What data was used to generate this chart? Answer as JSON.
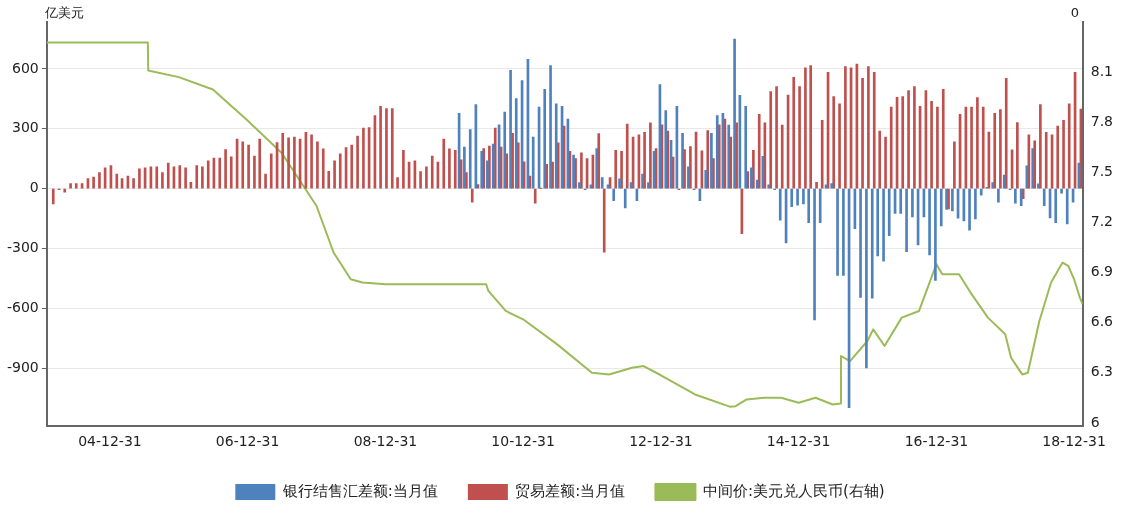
{
  "chart_data": {
    "type": "bar",
    "ylabel": "亿美元",
    "legend": "bottom",
    "grid": "y",
    "marker": "none",
    "x": [
      "2004-02-29",
      "2004-03-31",
      "2004-04-30",
      "2004-05-31",
      "2004-06-30",
      "2004-07-31",
      "2004-08-31",
      "2004-09-30",
      "2004-10-31",
      "2004-11-30",
      "2004-12-31",
      "2005-01-31",
      "2005-02-28",
      "2005-03-31",
      "2005-04-30",
      "2005-05-31",
      "2005-06-30",
      "2005-07-31",
      "2005-08-31",
      "2005-09-30",
      "2005-10-31",
      "2005-11-30",
      "2005-12-31",
      "2006-01-31",
      "2006-02-28",
      "2006-03-31",
      "2006-04-30",
      "2006-05-31",
      "2006-06-30",
      "2006-07-31",
      "2006-08-31",
      "2006-09-30",
      "2006-10-31",
      "2006-11-30",
      "2006-12-31",
      "2007-01-31",
      "2007-02-28",
      "2007-03-31",
      "2007-04-30",
      "2007-05-31",
      "2007-06-30",
      "2007-07-31",
      "2007-08-31",
      "2007-09-30",
      "2007-10-31",
      "2007-11-30",
      "2007-12-31",
      "2008-01-31",
      "2008-02-29",
      "2008-03-31",
      "2008-04-30",
      "2008-05-31",
      "2008-06-30",
      "2008-07-31",
      "2008-08-31",
      "2008-09-30",
      "2008-10-31",
      "2008-11-30",
      "2008-12-31",
      "2009-01-31",
      "2009-02-28",
      "2009-03-31",
      "2009-04-30",
      "2009-05-31",
      "2009-06-30",
      "2009-07-31",
      "2009-08-31",
      "2009-09-30",
      "2009-10-31",
      "2009-11-30",
      "2009-12-31",
      "2010-01-31",
      "2010-02-28",
      "2010-03-31",
      "2010-04-30",
      "2010-05-31",
      "2010-06-30",
      "2010-07-31",
      "2010-08-31",
      "2010-09-30",
      "2010-10-31",
      "2010-11-30",
      "2010-12-31",
      "2011-01-31",
      "2011-02-28",
      "2011-03-31",
      "2011-04-30",
      "2011-05-31",
      "2011-06-30",
      "2011-07-31",
      "2011-08-31",
      "2011-09-30",
      "2011-10-31",
      "2011-11-30",
      "2011-12-31",
      "2012-01-31",
      "2012-02-29",
      "2012-03-31",
      "2012-04-30",
      "2012-05-31",
      "2012-06-30",
      "2012-07-31",
      "2012-08-31",
      "2012-09-30",
      "2012-10-31",
      "2012-11-30",
      "2012-12-31",
      "2013-01-31",
      "2013-02-28",
      "2013-03-31",
      "2013-04-30",
      "2013-05-31",
      "2013-06-30",
      "2013-07-31",
      "2013-08-31",
      "2013-09-30",
      "2013-10-31",
      "2013-11-30",
      "2013-12-31",
      "2014-01-31",
      "2014-02-28",
      "2014-03-31",
      "2014-04-30",
      "2014-05-31",
      "2014-06-30",
      "2014-07-31",
      "2014-08-31",
      "2014-09-30",
      "2014-10-31",
      "2014-11-30",
      "2014-12-31",
      "2015-01-31",
      "2015-02-28",
      "2015-03-31",
      "2015-04-30",
      "2015-05-31",
      "2015-06-30",
      "2015-07-31",
      "2015-08-31",
      "2015-09-30",
      "2015-10-31",
      "2015-11-30",
      "2015-12-31",
      "2016-01-31",
      "2016-02-29",
      "2016-03-31",
      "2016-04-30",
      "2016-05-31",
      "2016-06-30",
      "2016-07-31",
      "2016-08-31",
      "2016-09-30",
      "2016-10-31",
      "2016-11-30",
      "2016-12-31",
      "2017-01-31",
      "2017-02-28",
      "2017-03-31",
      "2017-04-30",
      "2017-05-31",
      "2017-06-30",
      "2017-07-31",
      "2017-08-31",
      "2017-09-30",
      "2017-10-31",
      "2017-11-30",
      "2017-12-31",
      "2018-01-31",
      "2018-02-28",
      "2018-03-31",
      "2018-04-30",
      "2018-05-31",
      "2018-06-30",
      "2018-07-31",
      "2018-08-31",
      "2018-09-30",
      "2018-10-31",
      "2018-11-30",
      "2018-12-31",
      "2019-01-31"
    ],
    "xlim": [
      "2004-01-31",
      "2019-02-15"
    ],
    "xticks": [
      {
        "value": "2004-12-31",
        "label": "04-12-31"
      },
      {
        "value": "2006-12-31",
        "label": "06-12-31"
      },
      {
        "value": "2008-12-31",
        "label": "08-12-31"
      },
      {
        "value": "2010-12-31",
        "label": "10-12-31"
      },
      {
        "value": "2012-12-31",
        "label": "12-12-31"
      },
      {
        "value": "2014-12-31",
        "label": "14-12-31"
      },
      {
        "value": "2016-12-31",
        "label": "16-12-31"
      },
      {
        "value": "2018-12-31",
        "label": "18-12-31"
      }
    ],
    "ylim": [
      -1190,
      835
    ],
    "yticks": [
      -900,
      -600,
      -300,
      0,
      300,
      600
    ],
    "y2lim": [
      5.98,
      8.4
    ],
    "y2ticks": [
      6.0,
      6.3,
      6.6,
      6.9,
      7.2,
      7.5,
      7.8,
      8.1
    ],
    "y2label": "0",
    "series": [
      {
        "name": "银行结售汇差额:当月值",
        "color": "#4f81bd",
        "values": [
          null,
          null,
          null,
          null,
          null,
          null,
          null,
          null,
          null,
          null,
          null,
          null,
          null,
          null,
          null,
          null,
          null,
          null,
          null,
          null,
          null,
          null,
          null,
          null,
          null,
          null,
          null,
          null,
          null,
          null,
          null,
          null,
          null,
          null,
          null,
          null,
          null,
          null,
          null,
          null,
          null,
          null,
          null,
          null,
          null,
          null,
          null,
          null,
          null,
          null,
          null,
          null,
          null,
          null,
          null,
          null,
          null,
          null,
          null,
          null,
          null,
          null,
          null,
          null,
          null,
          null,
          null,
          null,
          null,
          null,
          null,
          377,
          208,
          296,
          421,
          187,
          139,
          224,
          320,
          384,
          593,
          451,
          541,
          648,
          258,
          409,
          498,
          617,
          425,
          413,
          349,
          168,
          31,
          -5,
          19,
          201,
          56,
          19,
          -60,
          49,
          -97,
          31,
          -60,
          73,
          31,
          187,
          522,
          391,
          242,
          413,
          277,
          110,
          -5,
          -60,
          92,
          277,
          366,
          377,
          319,
          750,
          468,
          413,
          105,
          43,
          162,
          19,
          -5,
          -158,
          -272,
          -90,
          -83,
          -77,
          -170,
          -658,
          -170,
          19,
          26,
          -434,
          -434,
          -1097,
          -201,
          -545,
          -898,
          -548,
          -337,
          -363,
          -235,
          -124,
          -124,
          -315,
          -141,
          -282,
          -141,
          -332,
          -460,
          -187,
          -104,
          -112,
          -148,
          -162,
          -208,
          -151,
          -32,
          7,
          31,
          -68,
          68,
          -5,
          -73,
          -85,
          114,
          201,
          24,
          -85,
          -146,
          -170,
          -22,
          -177,
          -68,
          128
        ]
      },
      {
        "name": "贸易差额:当月值",
        "color": "#c0504d",
        "values": [
          -77,
          -5,
          -18,
          25,
          25,
          25,
          51,
          58,
          80,
          105,
          116,
          73,
          51,
          63,
          51,
          99,
          105,
          110,
          110,
          80,
          128,
          110,
          116,
          105,
          32,
          116,
          110,
          139,
          153,
          153,
          196,
          160,
          248,
          235,
          218,
          163,
          248,
          73,
          175,
          231,
          277,
          255,
          258,
          248,
          282,
          270,
          235,
          199,
          87,
          139,
          175,
          206,
          218,
          264,
          303,
          306,
          366,
          413,
          401,
          401,
          56,
          192,
          133,
          139,
          85,
          110,
          163,
          133,
          248,
          199,
          192,
          145,
          80,
          -68,
          20,
          201,
          213,
          303,
          208,
          175,
          277,
          230,
          134,
          63,
          -73,
          1,
          122,
          133,
          230,
          313,
          187,
          151,
          180,
          151,
          168,
          276,
          -318,
          56,
          192,
          187,
          323,
          258,
          270,
          282,
          330,
          201,
          320,
          289,
          158,
          -5,
          196,
          211,
          284,
          189,
          291,
          151,
          320,
          349,
          259,
          330,
          -225,
          85,
          192,
          373,
          330,
          487,
          511,
          318,
          469,
          558,
          511,
          605,
          617,
          32,
          342,
          583,
          461,
          425,
          612,
          605,
          624,
          553,
          612,
          583,
          289,
          259,
          409,
          458,
          461,
          491,
          511,
          413,
          491,
          437,
          409,
          498,
          -102,
          235,
          373,
          409,
          409,
          456,
          409,
          284,
          377,
          396,
          553,
          194,
          331,
          -50,
          270,
          240,
          421,
          282,
          270,
          313,
          342,
          425,
          583,
          399
        ]
      },
      {
        "name": "中间价:美元兑人民币(右轴)",
        "type": "line",
        "axis": "y2",
        "color": "#9bbb59",
        "line_style": "solid",
        "x": [
          "2004-01-31",
          "2005-07-20",
          "2005-07-22",
          "2005-12-31",
          "2006-06-30",
          "2006-12-31",
          "2007-06-30",
          "2007-12-31",
          "2008-03-31",
          "2008-06-30",
          "2008-08-31",
          "2008-12-31",
          "2009-06-30",
          "2010-06-18",
          "2010-06-30",
          "2010-09-30",
          "2010-12-31",
          "2011-06-30",
          "2011-12-31",
          "2012-03-31",
          "2012-07-31",
          "2012-09-30",
          "2012-12-31",
          "2013-06-30",
          "2013-12-31",
          "2014-01-31",
          "2014-03-31",
          "2014-06-30",
          "2014-09-30",
          "2014-12-31",
          "2015-03-31",
          "2015-06-30",
          "2015-08-10",
          "2015-08-13",
          "2015-09-30",
          "2015-12-31",
          "2016-01-31",
          "2016-03-31",
          "2016-06-30",
          "2016-09-30",
          "2016-12-31",
          "2017-01-31",
          "2017-04-30",
          "2017-06-30",
          "2017-09-30",
          "2017-12-31",
          "2018-01-31",
          "2018-03-31",
          "2018-04-30",
          "2018-06-30",
          "2018-08-31",
          "2018-10-31",
          "2018-11-30",
          "2018-12-31",
          "2019-01-31",
          "2019-02-15"
        ],
        "values": [
          8.277,
          8.277,
          8.11,
          8.07,
          7.996,
          7.81,
          7.616,
          7.3,
          7.02,
          6.86,
          6.84,
          6.83,
          6.83,
          6.83,
          6.79,
          6.67,
          6.62,
          6.47,
          6.3,
          6.29,
          6.33,
          6.34,
          6.285,
          6.17,
          6.097,
          6.1,
          6.14,
          6.15,
          6.15,
          6.12,
          6.15,
          6.11,
          6.116,
          6.4,
          6.37,
          6.49,
          6.56,
          6.46,
          6.63,
          6.67,
          6.95,
          6.89,
          6.89,
          6.78,
          6.63,
          6.53,
          6.39,
          6.29,
          6.3,
          6.61,
          6.84,
          6.96,
          6.94,
          6.86,
          6.75,
          6.71
        ]
      }
    ]
  }
}
